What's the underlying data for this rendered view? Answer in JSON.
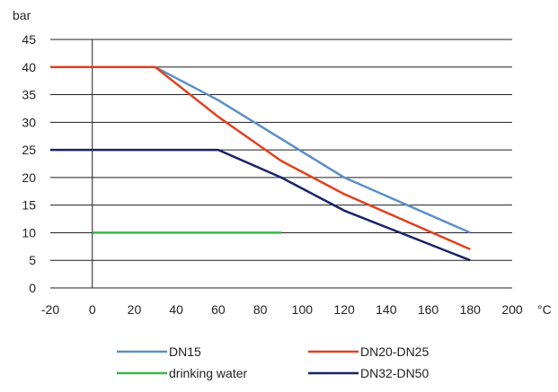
{
  "chart_data": {
    "type": "line",
    "ylabel": "bar",
    "xlabel": "°C",
    "xlim": [
      -20,
      200
    ],
    "ylim": [
      0,
      45
    ],
    "x_ticks": [
      "-20",
      "0",
      "20",
      "40",
      "60",
      "80",
      "100",
      "120",
      "140",
      "160",
      "180",
      "200"
    ],
    "y_ticks": [
      "0",
      "5",
      "10",
      "15",
      "20",
      "25",
      "30",
      "35",
      "40",
      "45"
    ],
    "grid": "horizontal",
    "legend_position": "bottom",
    "series": [
      {
        "name": "DN15",
        "color": "#5b8fc8",
        "points": [
          [
            -20,
            40
          ],
          [
            30,
            40
          ],
          [
            60,
            34
          ],
          [
            120,
            20
          ],
          [
            180,
            10
          ]
        ]
      },
      {
        "name": "DN20-DN25",
        "color": "#e2401c",
        "points": [
          [
            -20,
            40
          ],
          [
            30,
            40
          ],
          [
            60,
            31
          ],
          [
            90,
            23
          ],
          [
            120,
            17
          ],
          [
            180,
            7
          ]
        ]
      },
      {
        "name": "drinking water",
        "color": "#3cb54a",
        "points": [
          [
            0,
            10
          ],
          [
            90,
            10
          ]
        ]
      },
      {
        "name": "DN32-DN50",
        "color": "#1a2466",
        "points": [
          [
            -20,
            25
          ],
          [
            60,
            25
          ],
          [
            90,
            20
          ],
          [
            120,
            14
          ],
          [
            180,
            5
          ]
        ]
      }
    ]
  }
}
